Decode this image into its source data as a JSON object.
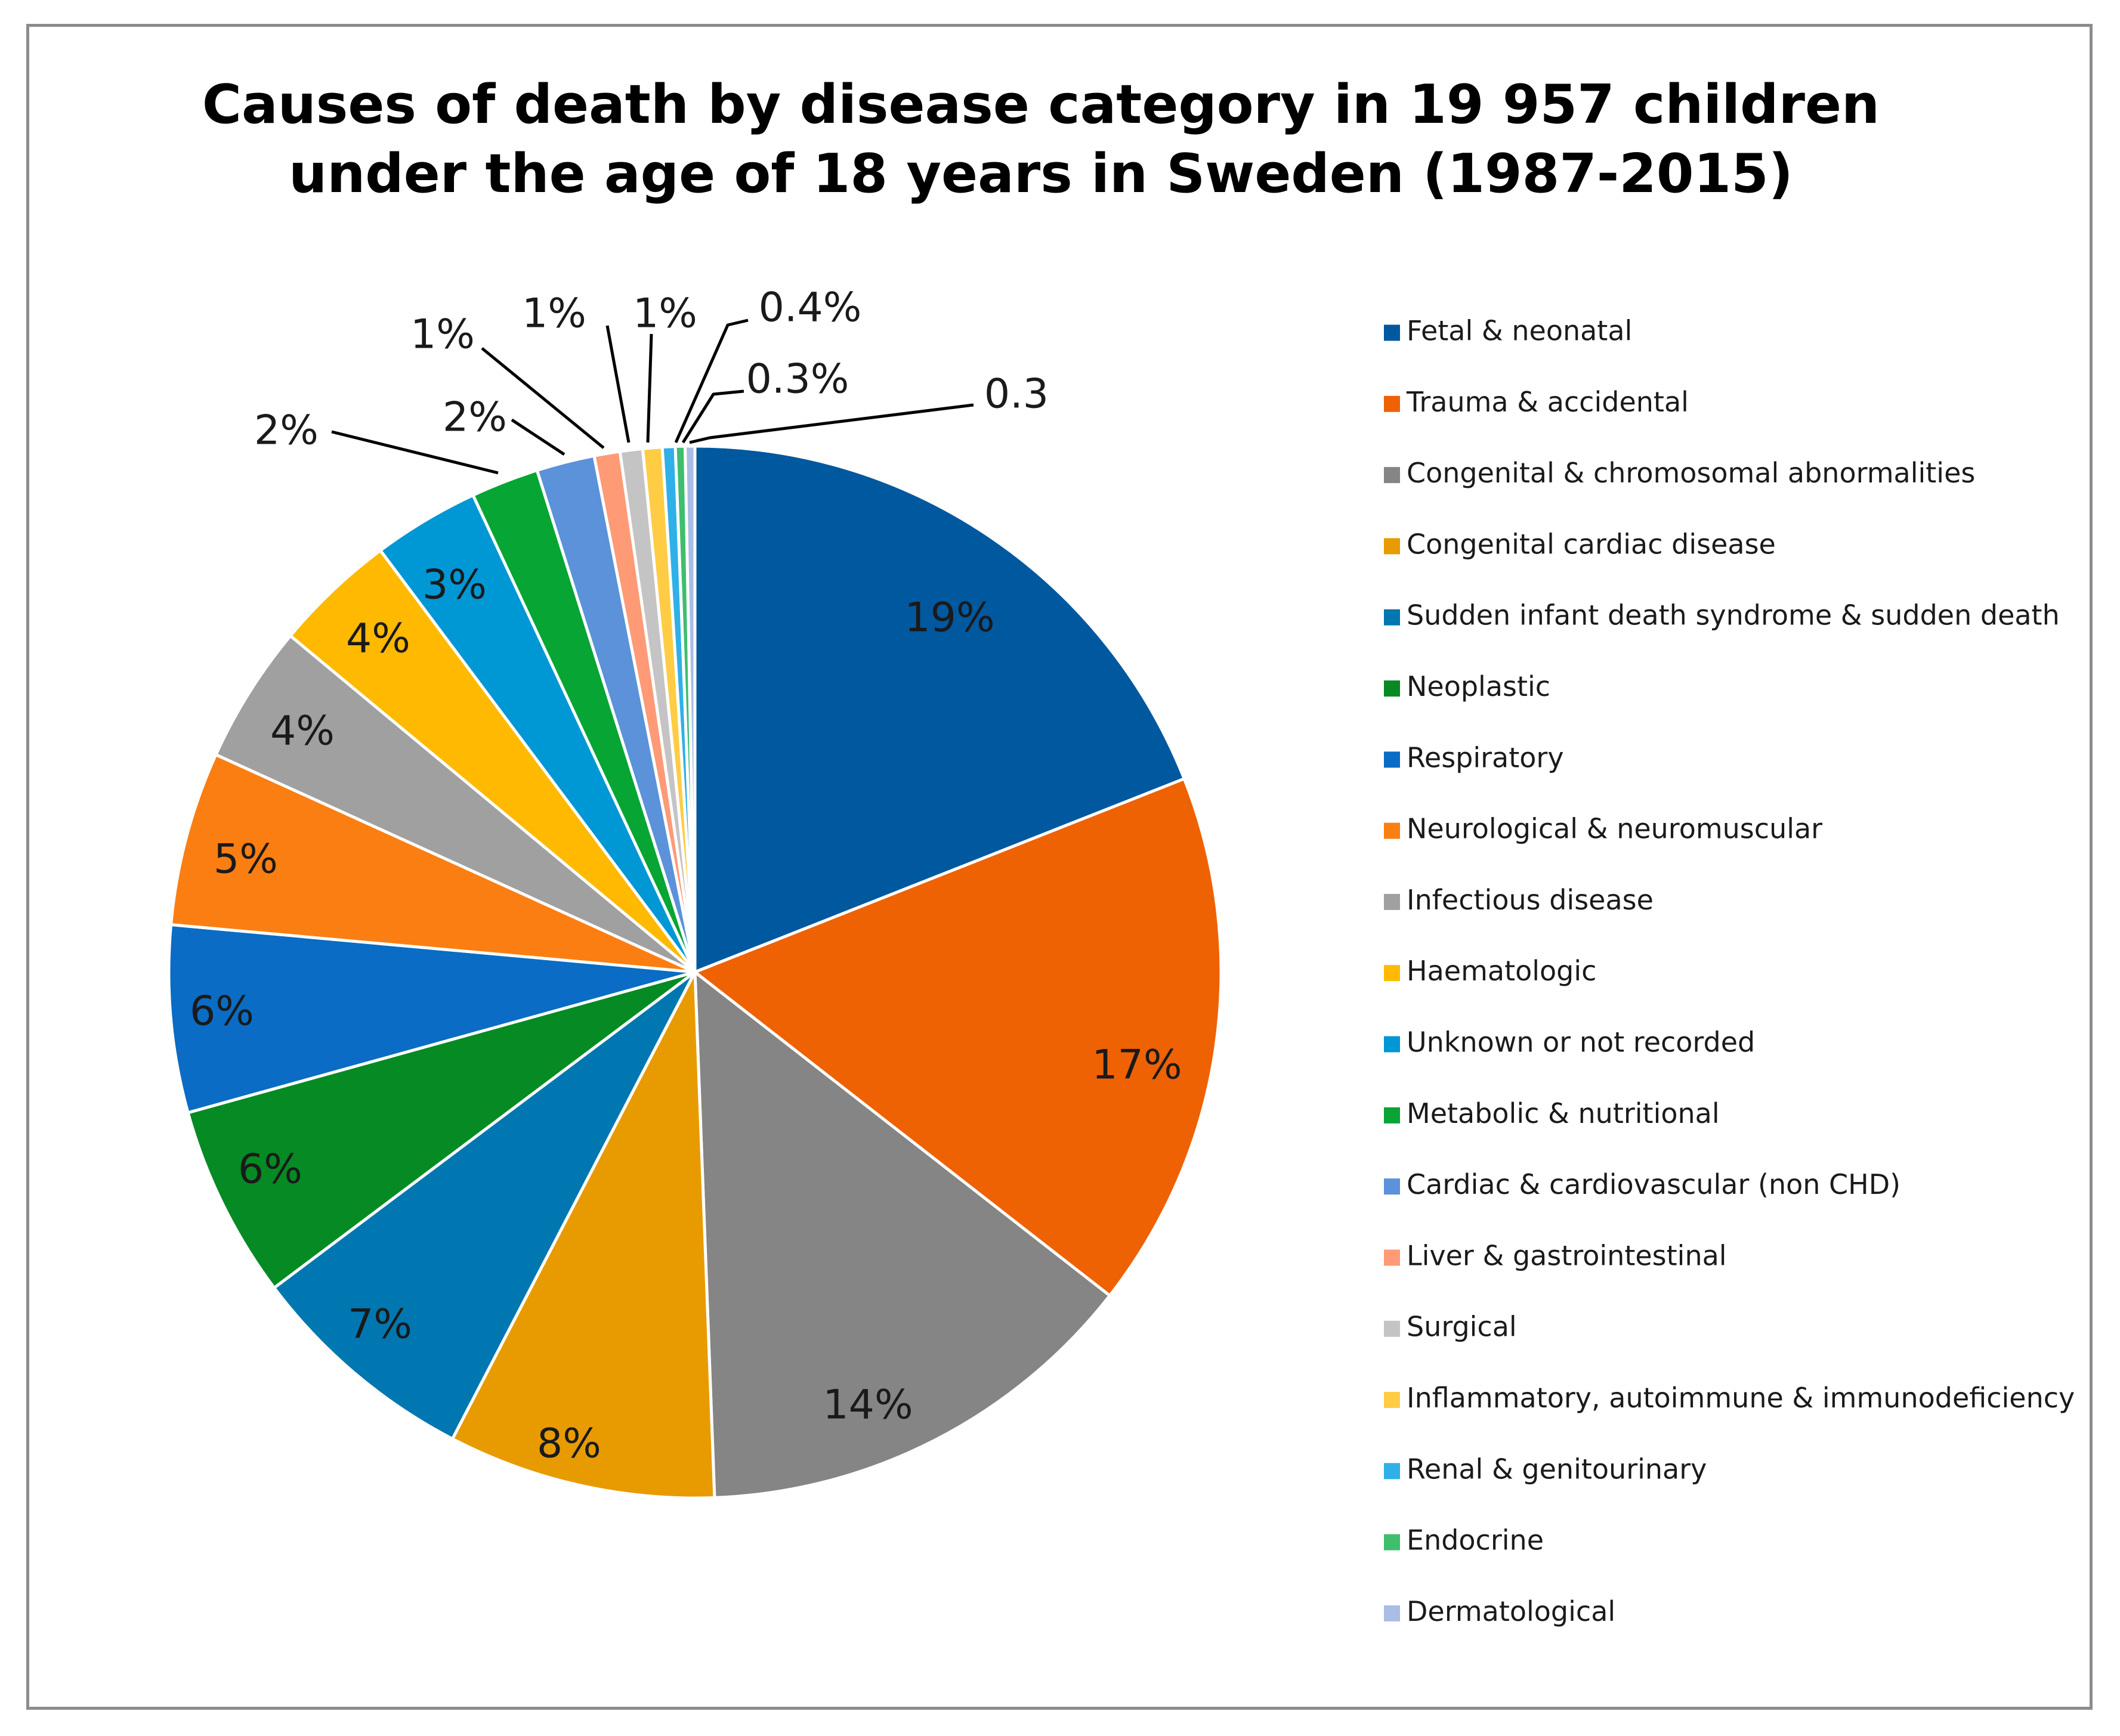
{
  "chart_data": {
    "type": "pie",
    "title": "Causes of death by disease category in 19 957 children under the age of 18 years in Sweden (1987-2015)",
    "legend_position": "right",
    "slices": [
      {
        "name": "Fetal & neonatal",
        "value": 19.2,
        "label": "19%",
        "color": "#00589f"
      },
      {
        "name": "Trauma & accidental",
        "value": 16.7,
        "label": "17%",
        "color": "#ee6204"
      },
      {
        "name": "Congenital & chromosomal abnormalities",
        "value": 14.0,
        "label": "14%",
        "color": "#858585"
      },
      {
        "name": "Congenital cardiac disease",
        "value": 8.3,
        "label": "8%",
        "color": "#e89b00"
      },
      {
        "name": "Sudden infant death syndrome & sudden death",
        "value": 7.2,
        "label": "7%",
        "color": "#0077b0"
      },
      {
        "name": "Neoplastic",
        "value": 6.0,
        "label": "6%",
        "color": "#058a24"
      },
      {
        "name": "Respiratory",
        "value": 5.8,
        "label": "6%",
        "color": "#0a6cc4"
      },
      {
        "name": "Neurological & neuromuscular",
        "value": 5.4,
        "label": "5%",
        "color": "#fb7e12"
      },
      {
        "name": "Infectious disease",
        "value": 4.3,
        "label": "4%",
        "color": "#a0a0a0"
      },
      {
        "name": "Haematologic",
        "value": 3.8,
        "label": "4%",
        "color": "#ffba00"
      },
      {
        "name": "Unknown or not recorded",
        "value": 3.3,
        "label": "3%",
        "color": "#0097d5"
      },
      {
        "name": "Metabolic & nutritional",
        "value": 2.1,
        "label": "2%",
        "color": "#07a534"
      },
      {
        "name": "Cardiac & cardiovascular (non CHD)",
        "value": 1.8,
        "label": "2%",
        "color": "#5b92d9"
      },
      {
        "name": "Liver & gastrointestinal",
        "value": 0.8,
        "label": "1%",
        "color": "#ff9a76"
      },
      {
        "name": "Surgical",
        "value": 0.7,
        "label": "1%",
        "color": "#c4c4c4"
      },
      {
        "name": "Inflammatory, autoimmune & immunodeficiency",
        "value": 0.6,
        "label": "1%",
        "color": "#ffcc44"
      },
      {
        "name": "Renal & genitourinary",
        "value": 0.4,
        "label": "0.4%",
        "color": "#2fb0e8"
      },
      {
        "name": "Endocrine",
        "value": 0.3,
        "label": "0.3%",
        "color": "#3fbe6e"
      },
      {
        "name": "Dermatological",
        "value": 0.3,
        "label": "0.3",
        "color": "#a9bde6"
      }
    ]
  }
}
